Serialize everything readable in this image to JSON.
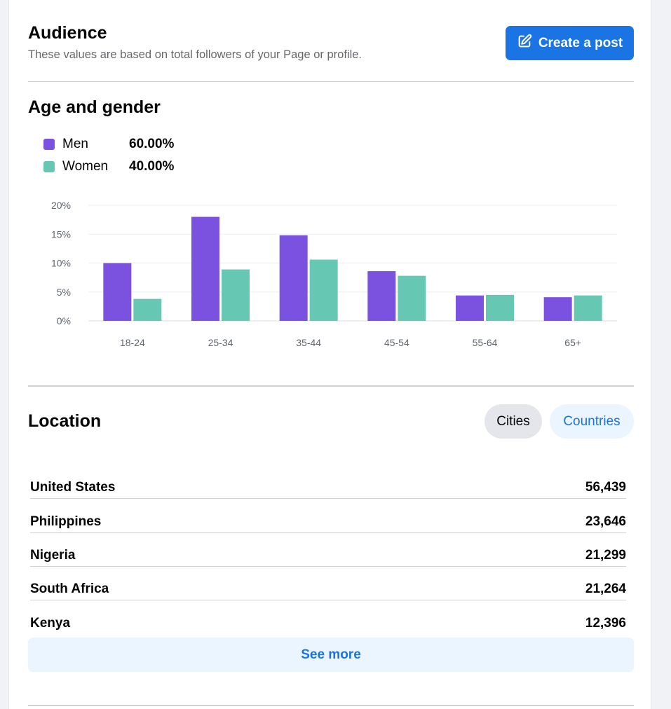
{
  "header": {
    "title": "Audience",
    "subtitle": "These values are based on total followers of your Page or profile.",
    "create_post_label": "Create a post",
    "create_post_icon": "edit-icon"
  },
  "age_gender": {
    "title": "Age and gender",
    "legend": [
      {
        "name": "Men",
        "value": "60.00%",
        "color": "#7b52e0"
      },
      {
        "name": "Women",
        "value": "40.00%",
        "color": "#66c7b3"
      }
    ]
  },
  "chart_data": {
    "type": "bar",
    "categories": [
      "18-24",
      "25-34",
      "35-44",
      "45-54",
      "55-64",
      "65+"
    ],
    "series": [
      {
        "name": "Men",
        "values": [
          10,
          18,
          14.8,
          8.6,
          4.4,
          4.1
        ],
        "color": "#7b52e0"
      },
      {
        "name": "Women",
        "values": [
          3.8,
          8.9,
          10.6,
          7.8,
          4.5,
          4.4
        ],
        "color": "#66c7b3"
      }
    ],
    "yticks": [
      "0%",
      "5%",
      "10%",
      "15%",
      "20%"
    ],
    "ylim": [
      0,
      20
    ],
    "grid": true,
    "title": "",
    "xlabel": "",
    "ylabel": ""
  },
  "location": {
    "title": "Location",
    "tabs": [
      {
        "label": "Cities",
        "selected": true
      },
      {
        "label": "Countries",
        "selected": false
      }
    ],
    "rows": [
      {
        "name": "United States",
        "value": "56,439"
      },
      {
        "name": "Philippines",
        "value": "23,646"
      },
      {
        "name": "Nigeria",
        "value": "21,299"
      },
      {
        "name": "South Africa",
        "value": "21,264"
      },
      {
        "name": "Kenya",
        "value": "12,396"
      }
    ],
    "see_more_label": "See more"
  }
}
